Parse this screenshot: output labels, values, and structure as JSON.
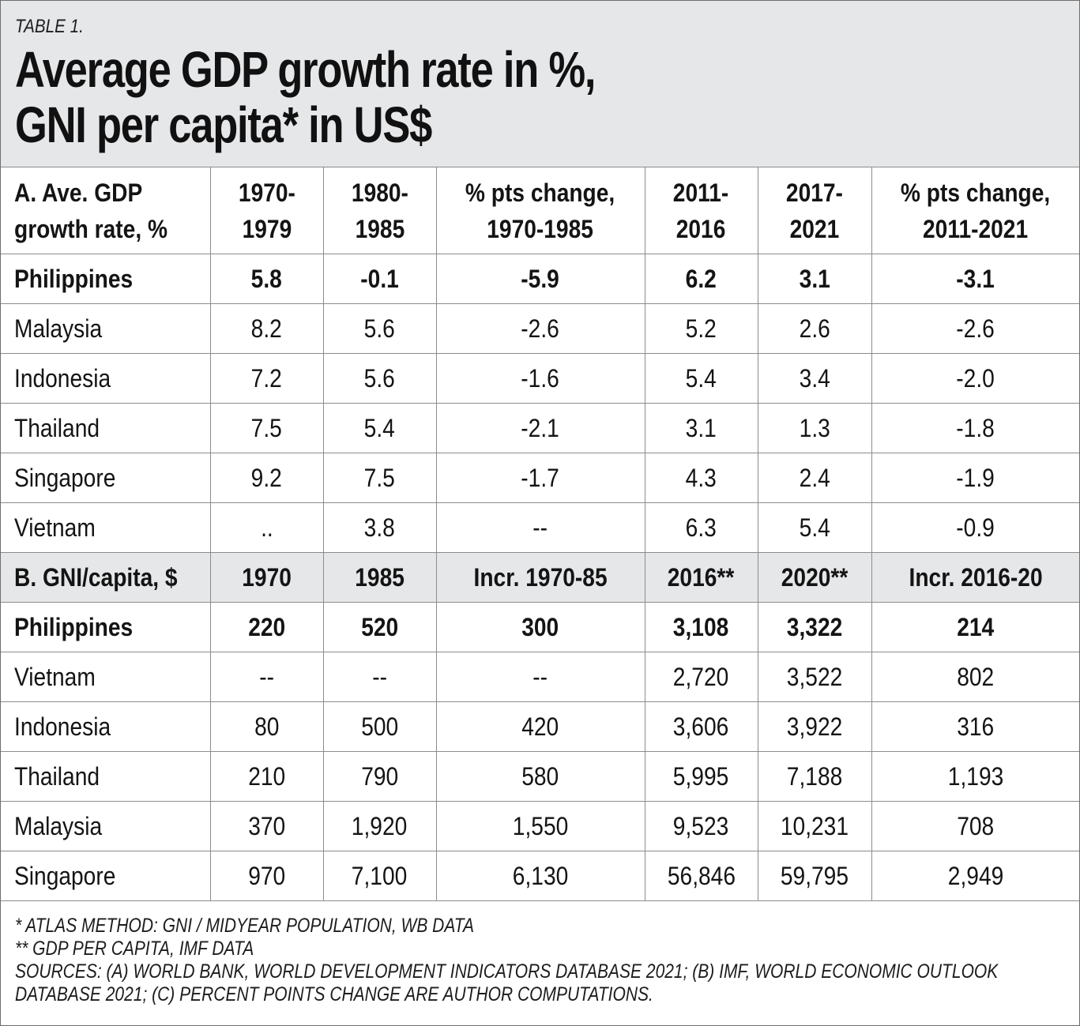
{
  "table_label": "TABLE 1.",
  "title_lines": [
    "Average GDP growth rate in %,",
    "GNI per capita* in US$"
  ],
  "section_a": {
    "header_label_lines": [
      "A. Ave. GDP",
      "growth rate, %"
    ],
    "columns": [
      [
        "1970-",
        "1979"
      ],
      [
        "1980-",
        "1985"
      ],
      [
        "% pts change,",
        "1970-1985"
      ],
      [
        "2011-",
        "2016"
      ],
      [
        "2017-",
        "2021"
      ],
      [
        "% pts change,",
        "2011-2021"
      ]
    ],
    "rows": [
      {
        "country": "Philippines",
        "values": [
          "5.8",
          "-0.1",
          "-5.9",
          "6.2",
          "3.1",
          "-3.1"
        ]
      },
      {
        "country": "Malaysia",
        "values": [
          "8.2",
          "5.6",
          "-2.6",
          "5.2",
          "2.6",
          "-2.6"
        ]
      },
      {
        "country": "Indonesia",
        "values": [
          "7.2",
          "5.6",
          "-1.6",
          "5.4",
          "3.4",
          "-2.0"
        ]
      },
      {
        "country": "Thailand",
        "values": [
          "7.5",
          "5.4",
          "-2.1",
          "3.1",
          "1.3",
          "-1.8"
        ]
      },
      {
        "country": "Singapore",
        "values": [
          "9.2",
          "7.5",
          "-1.7",
          "4.3",
          "2.4",
          "-1.9"
        ]
      },
      {
        "country": "Vietnam",
        "values": [
          "..",
          "3.8",
          "--",
          "6.3",
          "5.4",
          "-0.9"
        ]
      }
    ]
  },
  "section_b": {
    "header_label": "B. GNI/capita, $",
    "columns": [
      "1970",
      "1985",
      "Incr. 1970-85",
      "2016**",
      "2020**",
      "Incr. 2016-20"
    ],
    "rows": [
      {
        "country": "Philippines",
        "values": [
          "220",
          "520",
          "300",
          "3,108",
          "3,322",
          "214"
        ]
      },
      {
        "country": "Vietnam",
        "values": [
          "--",
          "--",
          "--",
          "2,720",
          "3,522",
          "802"
        ]
      },
      {
        "country": "Indonesia",
        "values": [
          "80",
          "500",
          "420",
          "3,606",
          "3,922",
          "316"
        ]
      },
      {
        "country": "Thailand",
        "values": [
          "210",
          "790",
          "580",
          "5,995",
          "7,188",
          "1,193"
        ]
      },
      {
        "country": "Malaysia",
        "values": [
          "370",
          "1,920",
          "1,550",
          "9,523",
          "10,231",
          "708"
        ]
      },
      {
        "country": "Singapore",
        "values": [
          "970",
          "7,100",
          "6,130",
          "56,846",
          "59,795",
          "2,949"
        ]
      }
    ]
  },
  "notes": [
    "*  ATLAS METHOD: GNI / MIDYEAR POPULATION, WB DATA",
    "** GDP PER CAPITA, IMF DATA",
    "SOURCES: (A) WORLD BANK, WORLD DEVELOPMENT INDICATORS DATABASE 2021; (B) IMF, WORLD ECONOMIC OUTLOOK DATABASE 2021; (C) PERCENT POINTS CHANGE ARE AUTHOR COMPUTATIONS."
  ],
  "colors": {
    "header_background": "#e6e7e9",
    "grid_lines": "#8c8c8c",
    "text": "#141414"
  }
}
